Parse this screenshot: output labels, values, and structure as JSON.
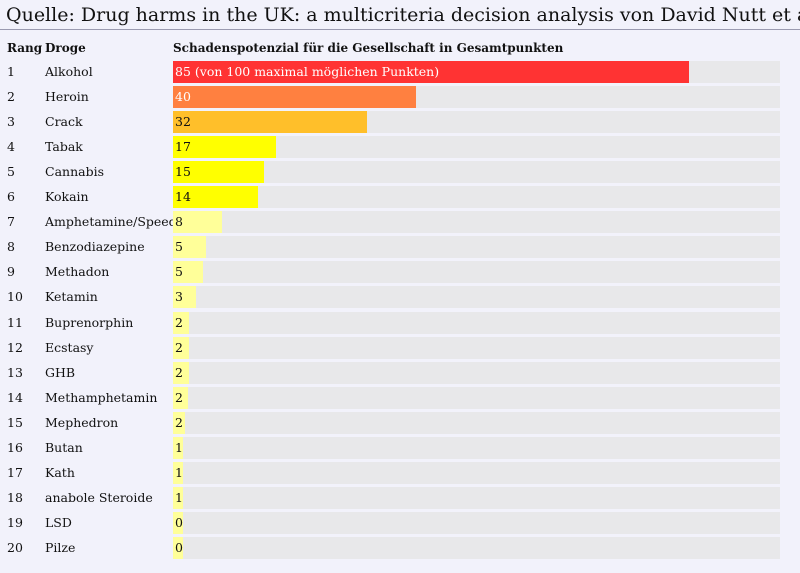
{
  "title": "Quelle: Drug harms in the UK: a multicriteria decision analysis von David Nutt et al.",
  "chart_data": {
    "type": "bar",
    "orientation": "horizontal",
    "title": "Quelle: Drug harms in the UK: a multicriteria decision analysis von David Nutt et al.",
    "headers": {
      "rank": "Rang",
      "drug": "Droge",
      "value": "Schadenspotenzial für die Gesellschaft in Gesamtpunkten"
    },
    "max_value": 100,
    "rows": [
      {
        "rank": "1",
        "drug": "Alkohol",
        "value": 85,
        "label": "85 (von 100 maximal möglichen Punkten)",
        "color": "#ff3333",
        "label_color": "#ffffff"
      },
      {
        "rank": "2",
        "drug": "Heroin",
        "value": 40,
        "label": "40",
        "color": "#ff8040",
        "label_color": "#ffffff"
      },
      {
        "rank": "3",
        "drug": "Crack",
        "value": 32,
        "label": "32",
        "color": "#ffbf2a",
        "label_color": "#111111"
      },
      {
        "rank": "4",
        "drug": "Tabak",
        "value": 17,
        "label": "17",
        "color": "#ffff00",
        "label_color": "#111111"
      },
      {
        "rank": "5",
        "drug": "Cannabis",
        "value": 15,
        "label": "15",
        "color": "#ffff00",
        "label_color": "#111111"
      },
      {
        "rank": "6",
        "drug": "Kokain",
        "value": 14,
        "label": "14",
        "color": "#ffff00",
        "label_color": "#111111"
      },
      {
        "rank": "7",
        "drug": "Amphetamine/Speed",
        "value": 8,
        "label": "8",
        "color": "#ffff99",
        "label_color": "#111111"
      },
      {
        "rank": "8",
        "drug": "Benzodiazepine",
        "value": 5.5,
        "label": "5",
        "color": "#ffff99",
        "label_color": "#111111"
      },
      {
        "rank": "9",
        "drug": "Methadon",
        "value": 5,
        "label": "5",
        "color": "#ffff99",
        "label_color": "#111111"
      },
      {
        "rank": "10",
        "drug": "Ketamin",
        "value": 3.8,
        "label": "3",
        "color": "#ffff99",
        "label_color": "#111111"
      },
      {
        "rank": "11",
        "drug": "Buprenorphin",
        "value": 2.7,
        "label": "2",
        "color": "#ffff99",
        "label_color": "#111111"
      },
      {
        "rank": "12",
        "drug": "Ecstasy",
        "value": 2.7,
        "label": "2",
        "color": "#ffff99",
        "label_color": "#111111"
      },
      {
        "rank": "13",
        "drug": "GHB",
        "value": 2.7,
        "label": "2",
        "color": "#ffff99",
        "label_color": "#111111"
      },
      {
        "rank": "14",
        "drug": "Methamphetamin",
        "value": 2.5,
        "label": "2",
        "color": "#ffff99",
        "label_color": "#111111"
      },
      {
        "rank": "15",
        "drug": "Mephedron",
        "value": 2,
        "label": "2",
        "color": "#ffff99",
        "label_color": "#111111"
      },
      {
        "rank": "16",
        "drug": "Butan",
        "value": 1.6,
        "label": "1",
        "color": "#ffff99",
        "label_color": "#111111"
      },
      {
        "rank": "17",
        "drug": "Kath",
        "value": 1.6,
        "label": "1",
        "color": "#ffff99",
        "label_color": "#111111"
      },
      {
        "rank": "18",
        "drug": "anabole Steroide",
        "value": 1.6,
        "label": "1",
        "color": "#ffff99",
        "label_color": "#111111"
      },
      {
        "rank": "19",
        "drug": "LSD",
        "value": 1.6,
        "label": "0",
        "color": "#ffff99",
        "label_color": "#111111"
      },
      {
        "rank": "20",
        "drug": "Pilze",
        "value": 1.6,
        "label": "0",
        "color": "#ffff99",
        "label_color": "#111111"
      }
    ]
  }
}
